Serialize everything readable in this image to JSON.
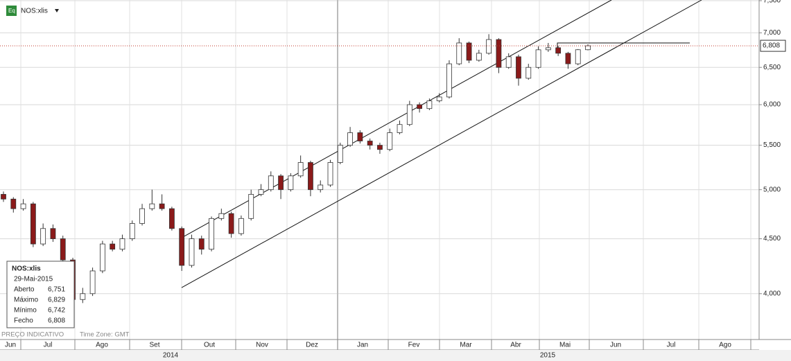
{
  "chart_data": {
    "type": "candlestick",
    "ticker": "NOS:xlis",
    "log_scale": true,
    "grid": true,
    "up_color": "#ffffff",
    "down_color": "#8b1a1a",
    "outline_color": "#333333",
    "ylim": [
      3625,
      7511
    ],
    "yticks": [
      {
        "value": 4000,
        "label": "4,000"
      },
      {
        "value": 4500,
        "label": "4,500"
      },
      {
        "value": 5000,
        "label": "5,000"
      },
      {
        "value": 5500,
        "label": "5,500"
      },
      {
        "value": 6000,
        "label": "6,000"
      },
      {
        "value": 6500,
        "label": "6,500"
      },
      {
        "value": 7000,
        "label": "7,000"
      },
      {
        "value": 7500,
        "label": "7,500"
      }
    ],
    "months": [
      "Jun",
      "Jul",
      "Ago",
      "Set",
      "Out",
      "Nov",
      "Dez",
      "Jan",
      "Fev",
      "Mar",
      "Abr",
      "Mai",
      "Jun",
      "Jul",
      "Ago"
    ],
    "years": [
      "2014",
      "2015"
    ],
    "open": [
      4950,
      4900,
      4800,
      4850,
      4450,
      4600,
      4500,
      4300,
      3950,
      4000,
      4200,
      4450,
      4400,
      4500,
      4650,
      4800,
      4850,
      4800,
      4600,
      4250,
      4500,
      4400,
      4700,
      4750,
      4550,
      4700,
      4950,
      5000,
      5150,
      5000,
      5150,
      5300,
      5000,
      5050,
      5300,
      5500,
      5650,
      5550,
      5500,
      5450,
      5650,
      5750,
      6000,
      5950,
      6050,
      6100,
      6550,
      6850,
      6600,
      6700,
      6900,
      6500,
      6650,
      6350,
      6500,
      6750,
      6780,
      6700,
      6550,
      6751
    ],
    "high": [
      4980,
      4920,
      4900,
      4870,
      4650,
      4640,
      4530,
      4320,
      4050,
      4230,
      4480,
      4480,
      4540,
      4680,
      4850,
      5000,
      4950,
      4820,
      4620,
      4540,
      4530,
      4720,
      4800,
      4770,
      4730,
      5000,
      5060,
      5200,
      5170,
      5180,
      5380,
      5320,
      5100,
      5330,
      5530,
      5720,
      5680,
      5580,
      5530,
      5700,
      5800,
      6050,
      6030,
      6080,
      6150,
      6600,
      6920,
      6870,
      6750,
      6980,
      6920,
      6700,
      6680,
      6550,
      6800,
      6850,
      6810,
      6720,
      6760,
      6829
    ],
    "low": [
      4870,
      4760,
      4780,
      4420,
      4430,
      4470,
      4250,
      3900,
      3920,
      3980,
      4180,
      4380,
      4380,
      4480,
      4630,
      4780,
      4780,
      4580,
      4200,
      4230,
      4350,
      4380,
      4680,
      4510,
      4530,
      4680,
      4930,
      4980,
      4900,
      4980,
      5130,
      4930,
      4970,
      5030,
      5280,
      5480,
      5520,
      5450,
      5400,
      5430,
      5630,
      5730,
      5900,
      5930,
      6030,
      6080,
      6530,
      6560,
      6580,
      6680,
      6420,
      6480,
      6250,
      6330,
      6480,
      6720,
      6660,
      6480,
      6530,
      6742
    ],
    "close": [
      4900,
      4800,
      4850,
      4450,
      4600,
      4500,
      4300,
      3950,
      4000,
      4200,
      4450,
      4400,
      4500,
      4650,
      4800,
      4850,
      4800,
      4600,
      4250,
      4500,
      4400,
      4700,
      4750,
      4550,
      4700,
      4950,
      5000,
      5150,
      5000,
      5150,
      5300,
      5000,
      5050,
      5300,
      5500,
      5650,
      5550,
      5500,
      5450,
      5650,
      5750,
      6000,
      5950,
      6050,
      6100,
      6550,
      6850,
      6600,
      6700,
      6900,
      6500,
      6650,
      6350,
      6500,
      6750,
      6780,
      6700,
      6550,
      6751,
      6808
    ],
    "last_price": {
      "value": 6808,
      "label": "6,808"
    },
    "info_box": {
      "title": "NOS:xlis",
      "date": "29-Mai-2015",
      "rows": [
        [
          "Aberto",
          "6,751"
        ],
        [
          "Máximo",
          "6,829"
        ],
        [
          "Mínimo",
          "6,742"
        ],
        [
          "Fecho",
          "6,808"
        ]
      ]
    },
    "footer": "PREÇO INDICATIVO",
    "timezone": "Time Zone: GMT"
  }
}
